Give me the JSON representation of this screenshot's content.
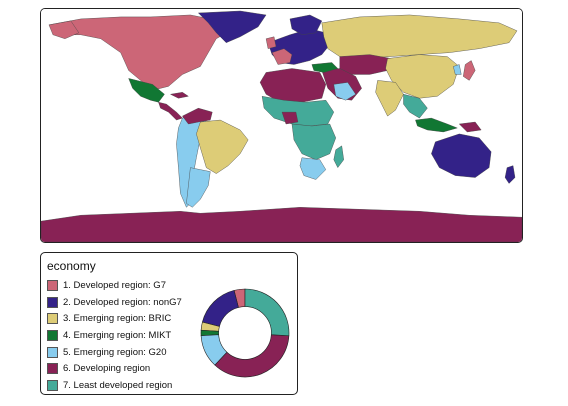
{
  "legend": {
    "title": "economy",
    "items": [
      {
        "label": "1. Developed region: G7",
        "color": "#CC6677"
      },
      {
        "label": "2. Developed region: nonG7",
        "color": "#332288"
      },
      {
        "label": "3. Emerging region: BRIC",
        "color": "#DDCC77"
      },
      {
        "label": "4. Emerging region: MIKT",
        "color": "#117733"
      },
      {
        "label": "5. Emerging region: G20",
        "color": "#88CCEE"
      },
      {
        "label": "6. Developing region",
        "color": "#882255"
      },
      {
        "label": "7. Least developed region",
        "color": "#44AA99"
      }
    ]
  },
  "chart_data": {
    "type": "pie",
    "categories": [
      "1. Developed region: G7",
      "2. Developed region: nonG7",
      "3. Emerging region: BRIC",
      "4. Emerging region: MIKT",
      "5. Emerging region: G20",
      "6. Developing region",
      "7. Least developed region"
    ],
    "values": [
      4,
      17,
      3,
      2,
      12,
      36,
      26
    ],
    "colors": [
      "#CC6677",
      "#332288",
      "#DDCC77",
      "#117733",
      "#88CCEE",
      "#882255",
      "#44AA99"
    ],
    "hole": 0.6,
    "start": "top",
    "direction": "counter-clockwise"
  }
}
